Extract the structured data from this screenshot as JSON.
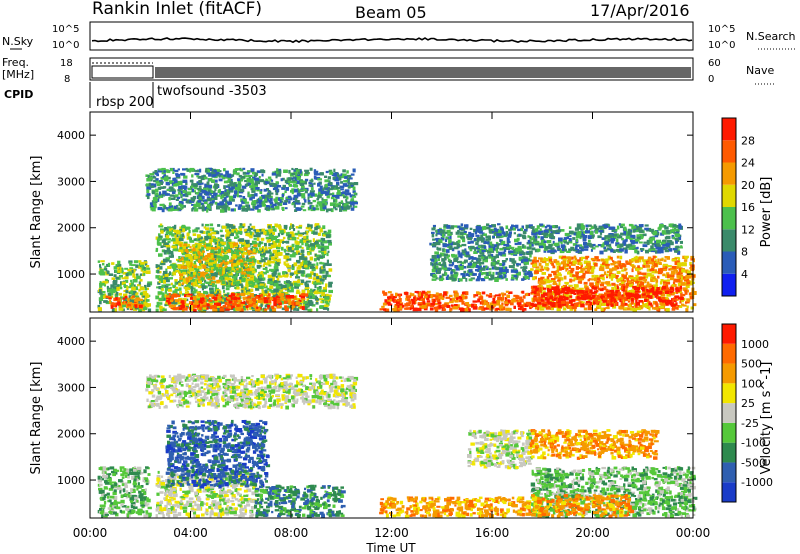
{
  "header": {
    "station": "Rankin Inlet (fitACF)",
    "beam": "Beam 05",
    "date": "17/Apr/2016"
  },
  "strip": {
    "nsky_label": "N.Sky",
    "nsky_ticks": [
      "10^5",
      "10^0"
    ],
    "nsearch_label": "N.Search",
    "nsearch_ticks": [
      "10^5",
      "10^0"
    ],
    "freq_label": "Freq.",
    "freq_unit": "[MHz]",
    "freq_ticks": [
      "18",
      "8"
    ],
    "nave_label": "Nave",
    "nave_ticks": [
      "60",
      "0"
    ],
    "cpid_label": "CPID",
    "cpid_segments": [
      "rbsp 200",
      "twofsound -3503"
    ]
  },
  "chart_data": [
    {
      "type": "heatmap",
      "title": "",
      "xlabel": "Time UT",
      "ylabel": "Slant Range [km]",
      "x_ticks": [
        "00:00",
        "04:00",
        "08:00",
        "12:00",
        "16:00",
        "20:00",
        "00:00"
      ],
      "xlim_hours": [
        0,
        24
      ],
      "y_ticks": [
        1000,
        2000,
        3000,
        4000
      ],
      "ylim": [
        180,
        4500
      ],
      "colorbar": {
        "label": "Power [dB]",
        "ticks": [
          "4",
          "8",
          "12",
          "16",
          "20",
          "24",
          "28"
        ],
        "range": [
          0,
          30
        ],
        "colors": [
          "#1020f0",
          "#2a5cb8",
          "#3a8a6a",
          "#4cc04c",
          "#e0d800",
          "#f59a00",
          "#ff5a00",
          "#ff1a00"
        ]
      },
      "regions": [
        {
          "t0": 0.3,
          "t1": 2.3,
          "r0": 250,
          "r1": 1300,
          "level": 12
        },
        {
          "t0": 0.6,
          "t1": 2.0,
          "r0": 300,
          "r1": 550,
          "level": 26
        },
        {
          "t0": 2.6,
          "t1": 9.5,
          "r0": 250,
          "r1": 2100,
          "level": 14
        },
        {
          "t0": 3.0,
          "t1": 8.5,
          "r0": 250,
          "r1": 600,
          "level": 26
        },
        {
          "t0": 3.5,
          "t1": 6.5,
          "r0": 800,
          "r1": 1700,
          "level": 18
        },
        {
          "t0": 2.2,
          "t1": 10.5,
          "r0": 2400,
          "r1": 3300,
          "level": 8
        },
        {
          "t0": 11.5,
          "t1": 17.5,
          "r0": 250,
          "r1": 650,
          "level": 26
        },
        {
          "t0": 13.5,
          "t1": 17.5,
          "r0": 900,
          "r1": 2100,
          "level": 8
        },
        {
          "t0": 17.5,
          "t1": 24,
          "r0": 250,
          "r1": 1400,
          "level": 20
        },
        {
          "t0": 17.5,
          "t1": 23.5,
          "r0": 350,
          "r1": 750,
          "level": 28
        },
        {
          "t0": 17.5,
          "t1": 23.5,
          "r0": 1500,
          "r1": 2100,
          "level": 8
        }
      ]
    },
    {
      "type": "heatmap",
      "title": "",
      "xlabel": "Time UT",
      "ylabel": "Slant Range [km]",
      "x_ticks": [
        "00:00",
        "04:00",
        "08:00",
        "12:00",
        "16:00",
        "20:00",
        "00:00"
      ],
      "xlim_hours": [
        0,
        24
      ],
      "y_ticks": [
        1000,
        2000,
        3000,
        4000
      ],
      "ylim": [
        180,
        4500
      ],
      "colorbar": {
        "label": "Velocity [m s^-1]",
        "ticks": [
          "1000",
          "500",
          "100",
          "25",
          "-25",
          "-100",
          "-500",
          "-1000"
        ],
        "colors": [
          "#1a3cc8",
          "#2f5fb0",
          "#2e8a4e",
          "#55c83a",
          "#c8c8c0",
          "#f2e600",
          "#f59a00",
          "#ff6a00",
          "#ff1a00"
        ]
      },
      "regions": [
        {
          "t0": 0.3,
          "t1": 2.3,
          "r0": 250,
          "r1": 1300,
          "level": 3
        },
        {
          "t0": 2.6,
          "t1": 6.5,
          "r0": 250,
          "r1": 1200,
          "level": 4
        },
        {
          "t0": 3.0,
          "t1": 7.0,
          "r0": 900,
          "r1": 2300,
          "level": 1
        },
        {
          "t0": 6.5,
          "t1": 10.0,
          "r0": 250,
          "r1": 900,
          "level": 2
        },
        {
          "t0": 2.2,
          "t1": 10.5,
          "r0": 2600,
          "r1": 3300,
          "level": 4
        },
        {
          "t0": 11.5,
          "t1": 17.5,
          "r0": 250,
          "r1": 650,
          "level": 6
        },
        {
          "t0": 15.0,
          "t1": 17.5,
          "r0": 1300,
          "r1": 2100,
          "level": 4
        },
        {
          "t0": 17.5,
          "t1": 24,
          "r0": 250,
          "r1": 1300,
          "level": 3
        },
        {
          "t0": 17.5,
          "t1": 21.5,
          "r0": 250,
          "r1": 700,
          "level": 6
        },
        {
          "t0": 17.5,
          "t1": 22.5,
          "r0": 1500,
          "r1": 2100,
          "level": 6
        }
      ]
    }
  ]
}
